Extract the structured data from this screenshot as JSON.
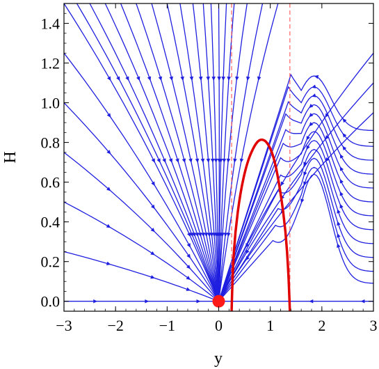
{
  "chart_data": {
    "type": "stream",
    "title": "",
    "xlabel": "y",
    "ylabel": "H",
    "xlim": [
      -3,
      3
    ],
    "ylim": [
      -0.05,
      1.5
    ],
    "xticks": [
      -3,
      -2,
      -1,
      0,
      1,
      2,
      3
    ],
    "xtick_labels": [
      "−3",
      "−2",
      "−1",
      "0",
      "1",
      "2",
      "3"
    ],
    "yticks": [
      0.0,
      0.2,
      0.4,
      0.6,
      0.8,
      1.0,
      1.2,
      1.4
    ],
    "ytick_labels": [
      "0.0",
      "0.2",
      "0.4",
      "0.6",
      "0.8",
      "1.0",
      "1.2",
      "1.4"
    ],
    "grid": false,
    "legend": "none",
    "fixed_point": {
      "x": 0,
      "y": 0
    },
    "nullcline_curve": {
      "x": [
        0.25,
        0.27,
        0.32,
        0.42,
        0.55,
        0.7,
        0.82,
        0.95,
        1.08,
        1.2,
        1.3,
        1.35,
        1.37,
        1.38
      ],
      "y": [
        -0.05,
        0.15,
        0.35,
        0.55,
        0.7,
        0.79,
        0.82,
        0.8,
        0.72,
        0.55,
        0.35,
        0.15,
        0.02,
        -0.05
      ]
    },
    "dashed_lines_x": [
      0.25,
      1.38
    ],
    "colors": {
      "streamlines": "#1f1fe0",
      "curve": "#e00000",
      "dashed": "#ff6060",
      "point": "#ff1a1a"
    }
  }
}
